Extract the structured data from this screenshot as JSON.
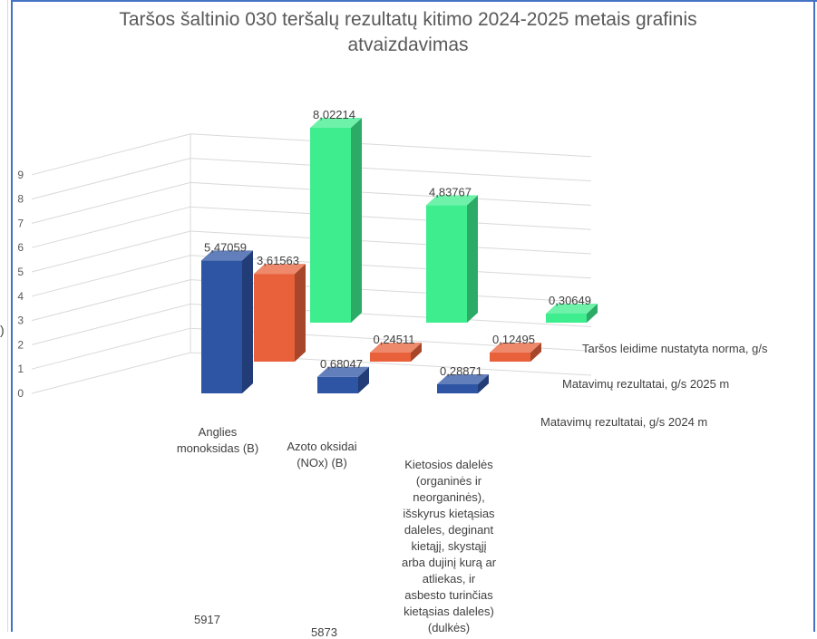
{
  "chart_data": {
    "type": "bar",
    "title": "Taršos šaltinio 030 teršalų rezultatų kitimo 2024-2025 metais grafinis atvaizdavimas",
    "categories": [
      "Anglies monoksidas (B)",
      "Azoto oksidai (NOx) (B)",
      "Kietosios dalelės (organinės ir neorganinės), išskyrus kietąsias daleles, deginant kietąjį, skystąjį arba dujinį kurą ar atliekas, ir asbesto turinčias kietąsias daleles) (dulkės)"
    ],
    "category_lines": [
      [
        "Anglies",
        "monoksidas (B)"
      ],
      [
        "Azoto oksidai",
        "(NOx) (B)"
      ],
      [
        "Kietosios dalelės",
        "(organinės ir",
        "neorganinės),",
        "išskyrus kietąsias",
        "daleles, deginant",
        "kietąjį, skystąjį",
        "arba dujinį kurą ar",
        "atliekas, ir",
        "asbesto turinčias",
        "kietąsias daleles)",
        "(dulkės)"
      ]
    ],
    "series": [
      {
        "name": "Matavimų rezultatai, g/s 2024 m",
        "values": [
          5.47059,
          0.68047,
          0.28871
        ],
        "labels": [
          "5,47059",
          "0,68047",
          "0,28871"
        ],
        "color": "#2e54a4"
      },
      {
        "name": "Matavimų rezultatai, g/s 2025 m",
        "values": [
          3.61563,
          0.24511,
          0.12495
        ],
        "labels": [
          "3,61563",
          "0,24511",
          "0,12495"
        ],
        "color": "#e8613a"
      },
      {
        "name": "Taršos leidime nustatyta norma, g/s",
        "values": [
          8.02214,
          4.83767,
          0.30649
        ],
        "labels": [
          "8,02214",
          "4,83767",
          "0,30649"
        ],
        "color": "#3ded8e"
      }
    ],
    "y_ticks": [
      "0",
      "1",
      "2",
      "3",
      "4",
      "5",
      "6",
      "7",
      "8",
      "9"
    ],
    "ylim": [
      0,
      9
    ],
    "grid": true,
    "legend": "right, beside depth rows"
  },
  "footer": {
    "numbers": [
      "5917",
      "5873"
    ]
  },
  "fragments": {
    "left_paren": ")"
  }
}
